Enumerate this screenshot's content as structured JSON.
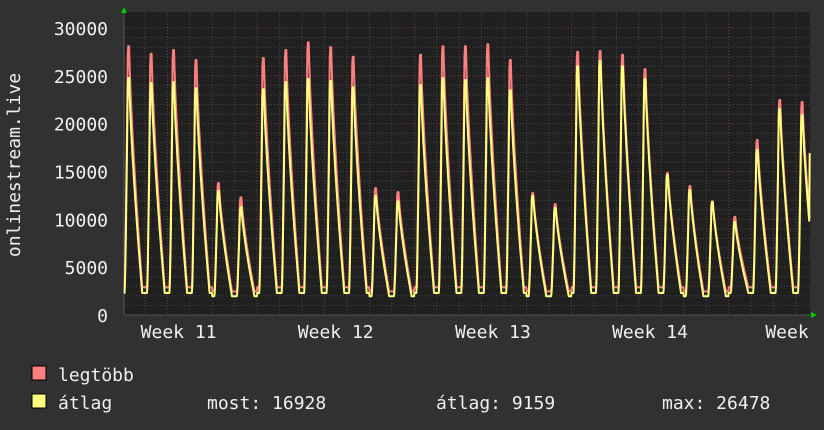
{
  "chart_data": {
    "type": "line",
    "ylabel": "onlinestream.live",
    "ylim": [
      0,
      30000
    ],
    "yticks": [
      0,
      5000,
      10000,
      15000,
      20000,
      25000,
      30000
    ],
    "xtick_labels": [
      "Week 11",
      "Week 12",
      "Week 13",
      "Week 14",
      "Week"
    ],
    "grid": true,
    "legend_placement": "bottom-left",
    "day_weekdays_note_free": true,
    "days_from_week11_tuesday_daily_peaks": {
      "max": [
        28100,
        27300,
        27700,
        26650,
        13800,
        12300,
        26860,
        27700,
        28500,
        28000,
        27000,
        13270,
        12850,
        27200,
        28100,
        28100,
        28300,
        26650,
        12750,
        11600,
        27500,
        27600,
        27200,
        25700,
        14840,
        13480,
        11900,
        10250,
        18300,
        22470,
        22260
      ],
      "avg": [
        24770,
        24250,
        24350,
        23700,
        12960,
        11290,
        23600,
        24350,
        24670,
        24460,
        23800,
        12440,
        11900,
        24040,
        24770,
        24560,
        24770,
        23500,
        12440,
        11180,
        26000,
        26550,
        26000,
        24670,
        14630,
        13060,
        11800,
        9720,
        17250,
        21530,
        20900
      ]
    },
    "daily_troughs": {
      "max": 2900,
      "avg": 2300
    },
    "series": [
      {
        "name": "legtöbb",
        "color": "#ff7f7f"
      },
      {
        "name": "átlag",
        "color": "#ffff80"
      }
    ]
  },
  "legend": {
    "max_label": "legtöbb",
    "avg_label": "átlag",
    "current": "most: 16928",
    "average": "átlag: 9159",
    "maximum": "max: 26478"
  },
  "colors": {
    "background": "#313131",
    "plot_background": "#202020",
    "grid_minor": "#4a4a4a",
    "grid_major": "#6e3a3a",
    "max": "#ff7f7f",
    "avg": "#ffff80",
    "arrow": "#00cc00"
  }
}
